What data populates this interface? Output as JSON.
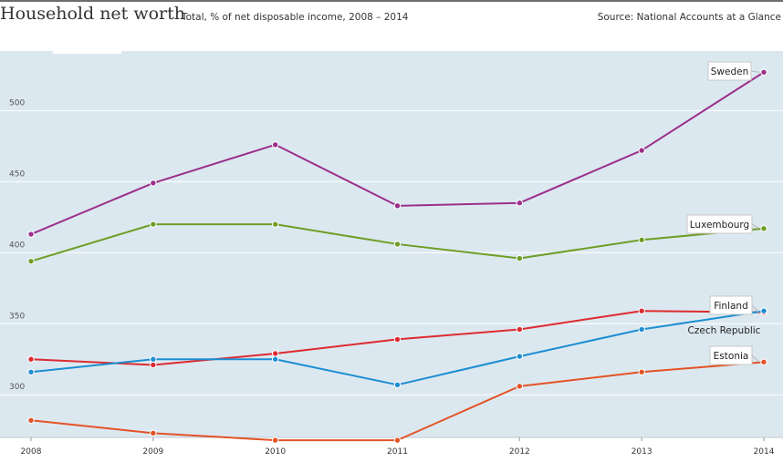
{
  "header": {
    "title": "Household net worth",
    "subtitle": "Total, % of net disposable income, 2008 – 2014",
    "source": "Source: National Accounts at a Glance"
  },
  "colors": {
    "plot_background": "#dce8f0",
    "gridline": "#ffffff",
    "header_rule": "#6e6e6e"
  },
  "chart_data": {
    "type": "line",
    "title": "Household net worth",
    "xlabel": "",
    "ylabel": "",
    "x": [
      2008,
      2009,
      2010,
      2011,
      2012,
      2013,
      2014
    ],
    "ylim": [
      270,
      540
    ],
    "yticks": [
      300,
      350,
      400,
      450,
      500
    ],
    "grid": true,
    "legend": "direct labels at right end of lines",
    "series": [
      {
        "name": "Sweden",
        "color": "#9b2f8b",
        "values": [
          413,
          449,
          476,
          433,
          435,
          472,
          527
        ]
      },
      {
        "name": "Luxembourg",
        "color": "#6f9e26",
        "values": [
          394,
          420,
          420,
          406,
          396,
          409,
          417
        ]
      },
      {
        "name": "Finland",
        "color": "#dd2b30",
        "values": [
          325,
          321,
          329,
          339,
          346,
          359,
          358
        ]
      },
      {
        "name": "Czech Republic",
        "color": "#1c8ed1",
        "values": [
          316,
          325,
          325,
          307,
          327,
          346,
          359
        ]
      },
      {
        "name": "Estonia",
        "color": "#e35326",
        "values": [
          282,
          273,
          268,
          268,
          306,
          316,
          323
        ]
      }
    ]
  }
}
